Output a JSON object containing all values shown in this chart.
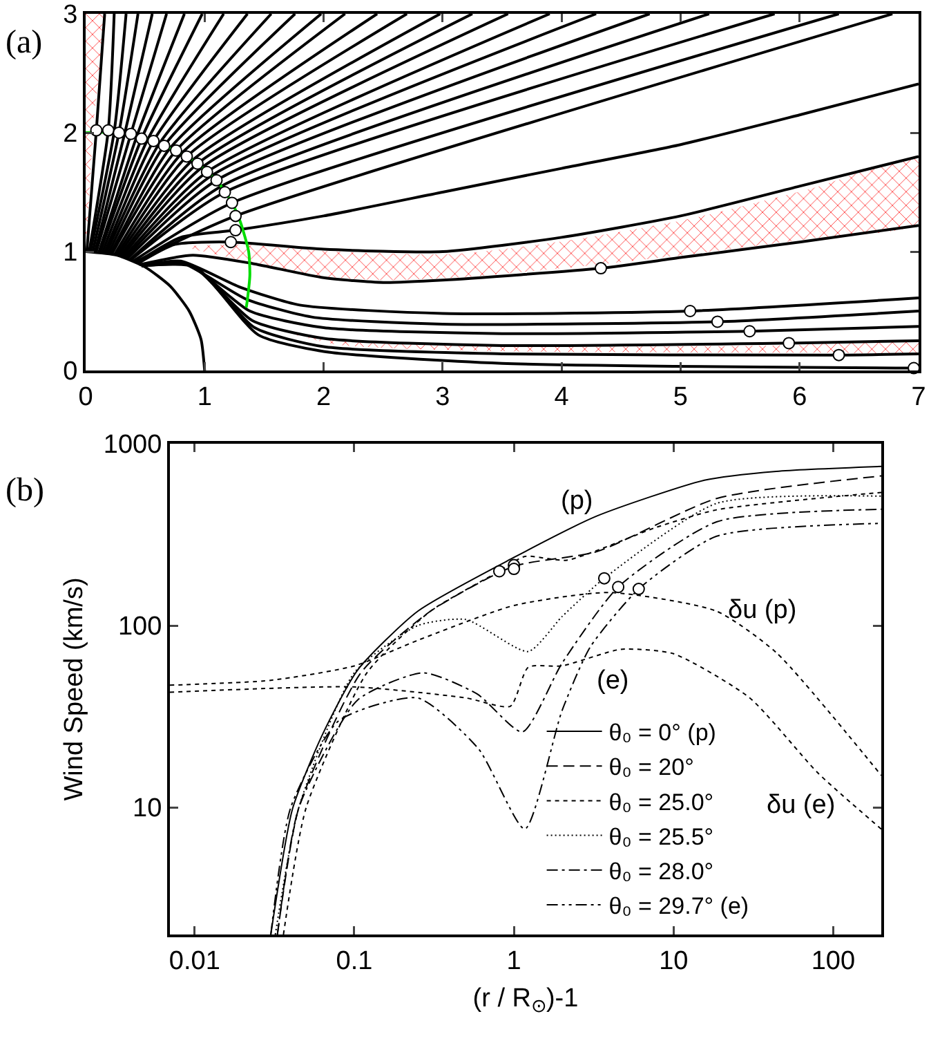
{
  "chart_data": [
    {
      "type": "line",
      "xlim": [
        0,
        7
      ],
      "ylim": [
        0,
        3
      ],
      "xticks": [
        0,
        1,
        2,
        3,
        4,
        5,
        6,
        7
      ],
      "yticks": [
        0,
        1,
        2,
        3
      ],
      "grid": false,
      "legend": false,
      "annotations": [
        "(a)"
      ],
      "series": [
        {
          "type": "area",
          "color": "#ff3333",
          "x": [
            0,
            0,
            0.14,
            0.07,
            0
          ],
          "values": [
            1.05,
            3,
            3,
            2.1,
            1.05
          ]
        },
        {
          "type": "area",
          "color": "#ff3333",
          "x": [
            0.85,
            1.3,
            2.1,
            3.1,
            4.1,
            5.1,
            6.1,
            7,
            7,
            6.1,
            5.1,
            4.2,
            3.1,
            2.5,
            1.9,
            1.35,
            0.85
          ],
          "values": [
            1.04,
            1.06,
            1.0,
            0.98,
            1.1,
            1.28,
            1.53,
            1.78,
            1.24,
            1.11,
            0.98,
            0.88,
            0.78,
            0.76,
            0.8,
            0.92,
            1.04
          ]
        },
        {
          "type": "area",
          "color": "#ff3333",
          "x": [
            1.5,
            2.1,
            3.6,
            5.8,
            7,
            7,
            6.2,
            3.6,
            2.1,
            1.5
          ],
          "values": [
            0.38,
            0.25,
            0.2,
            0.21,
            0.23,
            0.16,
            0.15,
            0.16,
            0.22,
            0.38
          ]
        },
        {
          "color": "#000000",
          "x": [
            0,
            0.26,
            0.5,
            0.71,
            0.87,
            0.97,
            1
          ],
          "values": [
            1,
            0.97,
            0.87,
            0.71,
            0.5,
            0.26,
            0
          ]
        },
        {
          "color": "#000000",
          "x": [
            0.01,
            0.09,
            0.16
          ],
          "values": [
            1,
            2.02,
            3
          ]
        },
        {
          "color": "#000000",
          "x": [
            0.03,
            0.19,
            0.24
          ],
          "values": [
            1,
            2.02,
            3
          ]
        },
        {
          "color": "#000000",
          "x": [
            0.04,
            0.24,
            0.34
          ],
          "values": [
            1,
            2.01,
            3
          ]
        },
        {
          "color": "#000000",
          "x": [
            0.06,
            0.28,
            0.44
          ],
          "values": [
            1,
            2.0,
            3
          ]
        },
        {
          "color": "#000000",
          "x": [
            0.08,
            0.33,
            0.56
          ],
          "values": [
            1,
            2.0,
            3
          ]
        },
        {
          "color": "#000000",
          "x": [
            0.09,
            0.38,
            0.68
          ],
          "values": [
            1,
            1.99,
            3
          ]
        },
        {
          "color": "#000000",
          "x": [
            0.11,
            0.43,
            0.83
          ],
          "values": [
            0.99,
            1.97,
            3
          ]
        },
        {
          "color": "#000000",
          "x": [
            0.12,
            0.47,
            0.98
          ],
          "values": [
            0.99,
            1.95,
            3
          ]
        },
        {
          "color": "#000000",
          "x": [
            0.14,
            0.52,
            1.16
          ],
          "values": [
            0.99,
            1.94,
            3
          ]
        },
        {
          "color": "#000000",
          "x": [
            0.16,
            0.57,
            1.36
          ],
          "values": [
            0.99,
            1.93,
            3
          ]
        },
        {
          "color": "#000000",
          "x": [
            0.17,
            0.62,
            1.56
          ],
          "values": [
            0.98,
            1.91,
            3
          ]
        },
        {
          "color": "#000000",
          "x": [
            0.19,
            0.66,
            1.76
          ],
          "values": [
            0.98,
            1.89,
            3
          ]
        },
        {
          "color": "#000000",
          "x": [
            0.21,
            0.71,
            1.98
          ],
          "values": [
            0.98,
            1.87,
            3
          ]
        },
        {
          "color": "#000000",
          "x": [
            0.22,
            0.76,
            2.18
          ],
          "values": [
            0.98,
            1.85,
            3
          ]
        },
        {
          "color": "#000000",
          "x": [
            0.24,
            0.81,
            2.45
          ],
          "values": [
            0.97,
            1.83,
            3
          ]
        },
        {
          "color": "#000000",
          "x": [
            0.26,
            0.85,
            2.7
          ],
          "values": [
            0.97,
            1.8,
            3
          ]
        },
        {
          "color": "#000000",
          "x": [
            0.27,
            0.9,
            2.98
          ],
          "values": [
            0.96,
            1.77,
            3
          ]
        },
        {
          "color": "#000000",
          "x": [
            0.29,
            0.94,
            3.25
          ],
          "values": [
            0.96,
            1.74,
            3
          ]
        },
        {
          "color": "#000000",
          "x": [
            0.3,
            0.98,
            3.55
          ],
          "values": [
            0.95,
            1.71,
            3
          ]
        },
        {
          "color": "#000000",
          "x": [
            0.32,
            1.02,
            3.9
          ],
          "values": [
            0.95,
            1.67,
            3
          ]
        },
        {
          "color": "#000000",
          "x": [
            0.33,
            1.06,
            4.29
          ],
          "values": [
            0.94,
            1.64,
            3
          ]
        },
        {
          "color": "#000000",
          "x": [
            0.35,
            1.1,
            4.74
          ],
          "values": [
            0.94,
            1.6,
            3
          ]
        },
        {
          "color": "#000000",
          "x": [
            0.37,
            1.14,
            5.24
          ],
          "values": [
            0.93,
            1.55,
            3
          ]
        },
        {
          "color": "#000000",
          "x": [
            0.38,
            1.17,
            5.79
          ],
          "values": [
            0.93,
            1.5,
            3
          ]
        },
        {
          "color": "#000000",
          "x": [
            0.4,
            1.23,
            6.33
          ],
          "values": [
            0.92,
            1.41,
            3
          ]
        },
        {
          "color": "#000000",
          "x": [
            0.41,
            1.26,
            6.78
          ],
          "values": [
            0.91,
            1.3,
            3
          ]
        },
        {
          "color": "#000000",
          "x": [
            0.43,
            0.8,
            1.26,
            2,
            3,
            4,
            5,
            6,
            7
          ],
          "values": [
            0.91,
            1.12,
            1.18,
            1.3,
            1.5,
            1.7,
            1.9,
            2.15,
            2.41
          ]
        },
        {
          "color": "#000000",
          "x": [
            0.44,
            0.75,
            1.22,
            2,
            3,
            4,
            5,
            6,
            7
          ],
          "values": [
            0.9,
            1.06,
            1.08,
            1.02,
            1.0,
            1.12,
            1.3,
            1.55,
            1.8
          ]
        },
        {
          "color": "#000000",
          "x": [
            0.45,
            0.9,
            1.4,
            2,
            2.5,
            3,
            4.33,
            5,
            6,
            7
          ],
          "values": [
            0.89,
            0.97,
            0.9,
            0.78,
            0.74,
            0.76,
            0.86,
            0.95,
            1.08,
            1.22
          ]
        },
        {
          "color": "#000000",
          "x": [
            0.47,
            0.8,
            1.3,
            1.8,
            3,
            5.08,
            7
          ],
          "values": [
            0.88,
            0.92,
            0.7,
            0.55,
            0.48,
            0.5,
            0.61
          ]
        },
        {
          "color": "#000000",
          "x": [
            0.47,
            0.8,
            1.35,
            1.9,
            3,
            5.31,
            7
          ],
          "values": [
            0.88,
            0.91,
            0.6,
            0.45,
            0.39,
            0.41,
            0.5
          ]
        },
        {
          "color": "#000000",
          "x": [
            0.47,
            0.85,
            1.38,
            2,
            3.5,
            5.58,
            7
          ],
          "values": [
            0.88,
            0.9,
            0.5,
            0.36,
            0.31,
            0.33,
            0.37
          ]
        },
        {
          "color": "#000000",
          "x": [
            0.47,
            0.88,
            1.4,
            2,
            3.5,
            5.91,
            7
          ],
          "values": [
            0.88,
            0.89,
            0.42,
            0.27,
            0.21,
            0.23,
            0.25
          ]
        },
        {
          "color": "#000000",
          "x": [
            0.47,
            0.9,
            1.42,
            2,
            3.5,
            6.33,
            7
          ],
          "values": [
            0.88,
            0.88,
            0.36,
            0.2,
            0.14,
            0.13,
            0.14
          ]
        },
        {
          "color": "#000000",
          "x": [
            0.47,
            0.92,
            1.45,
            2,
            3.5,
            6.96,
            7
          ],
          "values": [
            0.88,
            0.87,
            0.3,
            0.16,
            0.06,
            0.02,
            0.02
          ]
        },
        {
          "color": "#00dd00",
          "x": [
            0,
            0.3,
            0.6,
            0.9,
            1.1,
            1.23,
            1.3,
            1.37,
            1.38,
            1.36,
            1.35
          ],
          "values": [
            2,
            2.0,
            1.92,
            1.77,
            1.6,
            1.41,
            1.25,
            1.0,
            0.8,
            0.6,
            0.53
          ]
        },
        {
          "type": "scatter",
          "marker": "circle",
          "color": "#ffffff",
          "x": [
            0.09,
            0.19,
            0.28,
            0.38,
            0.47,
            0.57,
            0.66,
            0.76,
            0.85,
            0.94,
            1.02,
            1.1,
            1.17,
            1.23,
            1.26,
            1.26,
            1.22,
            4.33,
            5.08,
            5.31,
            5.58,
            5.91,
            6.33,
            6.96
          ],
          "values": [
            2.02,
            2.02,
            2.0,
            1.99,
            1.95,
            1.93,
            1.89,
            1.85,
            1.8,
            1.74,
            1.67,
            1.6,
            1.5,
            1.41,
            1.3,
            1.18,
            1.08,
            0.86,
            0.5,
            0.41,
            0.33,
            0.23,
            0.13,
            0.02
          ]
        }
      ]
    },
    {
      "type": "line",
      "log": "xy",
      "xlim": [
        0.007,
        200
      ],
      "ylim": [
        2,
        1000
      ],
      "xticks": [
        0.01,
        0.1,
        1,
        10,
        100
      ],
      "yticks": [
        10,
        100,
        1000
      ],
      "xlabel": "(r / R$_{⊙}$)-1",
      "ylabel": "Wind Speed (km/s)",
      "grid": false,
      "legend": "bottom",
      "annotations": [
        "(b)",
        {
          "text": "(p)",
          "x": 2.45,
          "y": 350
        },
        {
          "text": "δu (p)",
          "x": 31,
          "y": 88
        },
        {
          "text": "(e)",
          "x": 3.8,
          "y": 70
        },
        {
          "text": "δu (e)",
          "x": 63,
          "y": 19.5
        }
      ],
      "series": [
        {
          "name": "θ₀ = 0° (p)",
          "color": "#000000",
          "line_style": "solid",
          "x": [
            0.03,
            0.041,
            0.063,
            0.105,
            0.25,
            1,
            3.3,
            15.6,
            44,
            200
          ],
          "values": [
            2,
            9.8,
            25,
            57,
            120,
            237,
            400,
            630,
            705,
            750
          ]
        },
        {
          "name": "θ₀ = 20°",
          "color": "#000000",
          "line_style": "dashed",
          "x": [
            0.033,
            0.045,
            0.11,
            0.3,
            1,
            3.3,
            18.6,
            200
          ],
          "values": [
            2,
            10,
            55,
            120,
            212,
            255,
            500,
            665
          ]
        },
        {
          "name": "θ₀ = 25.0°",
          "color": "#000000",
          "line_style": "shortdash",
          "x": [
            0.036,
            0.05,
            0.12,
            0.3,
            0.81,
            1.17,
            2.15,
            7.8,
            18.6,
            200
          ],
          "values": [
            2,
            10,
            55,
            120,
            199,
            240,
            229,
            347,
            433,
            540
          ]
        },
        {
          "name": "θ₀ = 25.5°",
          "color": "#000000",
          "line_style": "dotted",
          "x": [
            0.032,
            0.045,
            0.1,
            0.25,
            0.5,
            1.23,
            2,
            3.68,
            18.6,
            200
          ],
          "values": [
            2,
            10,
            55,
            100,
            108,
            72,
            112,
            182,
            470,
            515
          ]
        },
        {
          "name": "θ₀ = 28.0°",
          "color": "#000000",
          "line_style": "dashdot",
          "x": [
            0.033,
            0.045,
            0.105,
            0.27,
            0.59,
            1.13,
            2,
            4.5,
            18.6,
            200
          ],
          "values": [
            2,
            10,
            39,
            55,
            42,
            26,
            62,
            163,
            372,
            436
          ]
        },
        {
          "name": "θ₀ = 29.7° (e)",
          "color": "#000000",
          "line_style": "dashdotdot",
          "x": [
            0.03,
            0.04,
            0.08,
            0.25,
            0.6,
            1.17,
            2,
            3,
            6.05,
            18.6,
            200
          ],
          "values": [
            2,
            10,
            30,
            40,
            21,
            7.6,
            34,
            76,
            159,
            310,
            365
          ]
        },
        {
          "color": "#000000",
          "line_style": "shortdash",
          "x": [
            0.007,
            0.03,
            0.1,
            0.25,
            1,
            3.95,
            18.6,
            44,
            200
          ],
          "values": [
            47,
            50,
            60,
            83,
            129,
            152,
            120,
            71,
            15
          ]
        },
        {
          "color": "#000000",
          "line_style": "shortdash",
          "x": [
            0.007,
            0.1,
            0.5,
            0.95,
            1.23,
            2,
            4.67,
            10,
            30,
            80,
            200
          ],
          "values": [
            43,
            46,
            40,
            36,
            59,
            60,
            74,
            70,
            40,
            15.5,
            7.6
          ]
        },
        {
          "type": "scatter",
          "marker": "circle",
          "color": "#ffffff",
          "x": [
            0.81,
            1,
            1,
            3.68,
            4.5,
            6.05
          ],
          "values": [
            199,
            215,
            205,
            182,
            163,
            159
          ]
        }
      ]
    }
  ]
}
